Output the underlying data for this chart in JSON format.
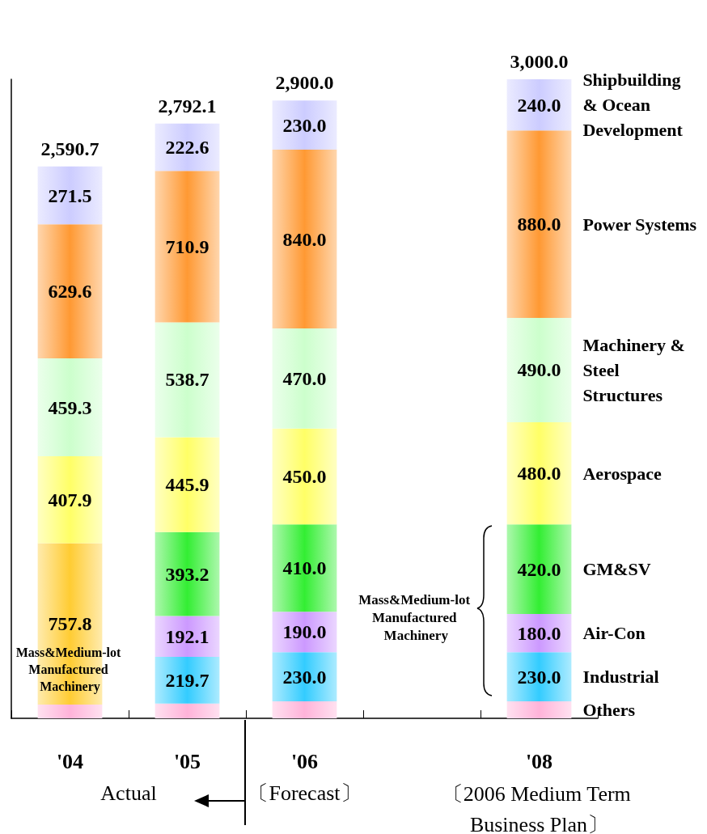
{
  "chart_data": {
    "type": "bar",
    "stacked": true,
    "categories": [
      "'04",
      "'05",
      "'06",
      null,
      "'08"
    ],
    "series": [
      {
        "name": "Others",
        "color": "#ffb3d9",
        "values": [
          64.6,
          69.0,
          80.0,
          null,
          80.0
        ],
        "value_labels": [
          null,
          null,
          null,
          null,
          null
        ]
      },
      {
        "name": "Mass&Medium-lot Manufactured Machinery",
        "color": "#ffcc33",
        "values": [
          757.8,
          null,
          null,
          null,
          null
        ],
        "value_labels": [
          "757.8",
          null,
          null,
          null,
          null
        ]
      },
      {
        "name": "Industrial",
        "color": "#33ccff",
        "values": [
          null,
          219.7,
          230.0,
          null,
          230.0
        ],
        "value_labels": [
          null,
          "219.7",
          "230.0",
          null,
          "230.0"
        ]
      },
      {
        "name": "Air-Con",
        "color": "#cc99ff",
        "values": [
          null,
          192.1,
          190.0,
          null,
          180.0
        ],
        "value_labels": [
          null,
          "192.1",
          "190.0",
          null,
          "180.0"
        ]
      },
      {
        "name": "GM&SV",
        "color": "#33ee33",
        "values": [
          null,
          393.2,
          410.0,
          null,
          420.0
        ],
        "value_labels": [
          null,
          "393.2",
          "410.0",
          null,
          "420.0"
        ]
      },
      {
        "name": "Aerospace",
        "color": "#ffff66",
        "values": [
          407.9,
          445.9,
          450.0,
          null,
          480.0
        ],
        "value_labels": [
          "407.9",
          "445.9",
          "450.0",
          null,
          "480.0"
        ]
      },
      {
        "name": "Machinery & Steel Structures",
        "color": "#ccffcc",
        "values": [
          459.3,
          538.7,
          470.0,
          null,
          490.0
        ],
        "value_labels": [
          "459.3",
          "538.7",
          "470.0",
          null,
          "490.0"
        ]
      },
      {
        "name": "Power Systems",
        "color": "#ff9933",
        "values": [
          629.6,
          710.9,
          840.0,
          null,
          880.0
        ],
        "value_labels": [
          "629.6",
          "710.9",
          "840.0",
          null,
          "880.0"
        ]
      },
      {
        "name": "Shipbuilding & Ocean Development",
        "color": "#ccccff",
        "values": [
          271.5,
          222.6,
          230.0,
          null,
          240.0
        ],
        "value_labels": [
          "271.5",
          "222.6",
          "230.0",
          null,
          "240.0"
        ]
      }
    ],
    "totals": [
      "2,590.7",
      "2,792.1",
      "2,900.0",
      null,
      "3,000.0"
    ],
    "annotations": [
      "Actual",
      "〔Forecast〕",
      "〔2006 Medium Term Business Plan〕",
      "Mass&Medium-lot Manufactured Machinery"
    ]
  }
}
